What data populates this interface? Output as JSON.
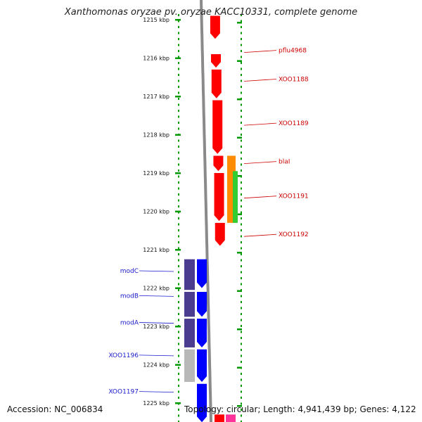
{
  "title": "Xanthomonas oryzae pv. oryzae KACC10331, complete genome",
  "footer": {
    "accession": "Accession: NC_006834",
    "summary": "Topology: circular; Length: 4,941,439 bp; Genes: 4,122"
  },
  "scale": {
    "unit": "kbp",
    "ticks": [
      {
        "kbp": 1215,
        "label": "1215 kbp"
      },
      {
        "kbp": 1216,
        "label": "1216 kbp"
      },
      {
        "kbp": 1217,
        "label": "1217 kbp"
      },
      {
        "kbp": 1218,
        "label": "1218 kbp"
      },
      {
        "kbp": 1219,
        "label": "1219 kbp"
      },
      {
        "kbp": 1220,
        "label": "1220 kbp"
      },
      {
        "kbp": 1221,
        "label": "1221 kbp"
      },
      {
        "kbp": 1222,
        "label": "1222 kbp"
      },
      {
        "kbp": 1223,
        "label": "1223 kbp"
      },
      {
        "kbp": 1224,
        "label": "1224 kbp"
      },
      {
        "kbp": 1225,
        "label": "1225 kbp"
      }
    ]
  },
  "colors": {
    "backbone": "#8a8a8a",
    "ring_dots": "#009900",
    "red_gene": "#ff0000",
    "orange_gene": "#ff8c00",
    "green_gene": "#33cc33",
    "blue_gene": "#0000ff",
    "purple_gene": "#4b3c8f",
    "grey_gene": "#b8b8b8",
    "pink_gene": "#ff3399",
    "red_label": "#cc0000",
    "blue_label": "#1a1acc"
  },
  "labels_red": [
    {
      "name": "pflu4968",
      "kbp": 1215.8
    },
    {
      "name": "XOO1188",
      "kbp": 1216.55
    },
    {
      "name": "XOO1189",
      "kbp": 1217.7
    },
    {
      "name": "blaI",
      "kbp": 1218.7
    },
    {
      "name": "XOO1191",
      "kbp": 1219.6
    },
    {
      "name": "XOO1192",
      "kbp": 1220.6
    }
  ],
  "labels_blue": [
    {
      "name": "modC",
      "kbp": 1221.55
    },
    {
      "name": "modB",
      "kbp": 1222.2
    },
    {
      "name": "modA",
      "kbp": 1222.9
    },
    {
      "name": "XOO1196",
      "kbp": 1223.75
    },
    {
      "name": "XOO1197",
      "kbp": 1224.7
    }
  ],
  "genes_red": [
    {
      "start": 1214.9,
      "end": 1215.5,
      "color": "red",
      "lane": 0
    },
    {
      "start": 1215.9,
      "end": 1216.25,
      "color": "red",
      "lane": 0
    },
    {
      "start": 1216.3,
      "end": 1217.05,
      "color": "red",
      "lane": 0
    },
    {
      "start": 1217.1,
      "end": 1218.5,
      "color": "red",
      "lane": 0
    },
    {
      "start": 1218.55,
      "end": 1218.95,
      "color": "red",
      "lane": 0
    },
    {
      "start": 1219.0,
      "end": 1220.25,
      "color": "red",
      "lane": 0
    },
    {
      "start": 1220.3,
      "end": 1220.9,
      "color": "red",
      "lane": 0
    },
    {
      "start": 1218.55,
      "end": 1220.3,
      "color": "orange",
      "lane": 1
    },
    {
      "start": 1218.95,
      "end": 1220.3,
      "color": "green",
      "lane": 2
    }
  ],
  "genes_blue": [
    {
      "start": 1221.25,
      "end": 1222.05,
      "color": "purple",
      "lane": "outer"
    },
    {
      "start": 1222.1,
      "end": 1222.75,
      "color": "purple",
      "lane": "outer"
    },
    {
      "start": 1222.8,
      "end": 1223.55,
      "color": "purple",
      "lane": "outer"
    },
    {
      "start": 1223.6,
      "end": 1224.45,
      "color": "grey",
      "lane": "outer"
    },
    {
      "start": 1221.25,
      "end": 1222.0,
      "color": "blue",
      "lane": "inner"
    },
    {
      "start": 1222.1,
      "end": 1222.75,
      "color": "blue",
      "lane": "inner"
    },
    {
      "start": 1222.8,
      "end": 1223.55,
      "color": "blue",
      "lane": "inner"
    },
    {
      "start": 1223.6,
      "end": 1224.45,
      "color": "blue",
      "lane": "inner"
    },
    {
      "start": 1224.5,
      "end": 1225.5,
      "color": "blue",
      "lane": "inner"
    }
  ],
  "genes_bottom": [
    {
      "start": 1225.3,
      "end": 1225.6,
      "color": "red",
      "lane": 0
    },
    {
      "start": 1225.3,
      "end": 1225.6,
      "color": "pink",
      "lane": 1
    }
  ]
}
